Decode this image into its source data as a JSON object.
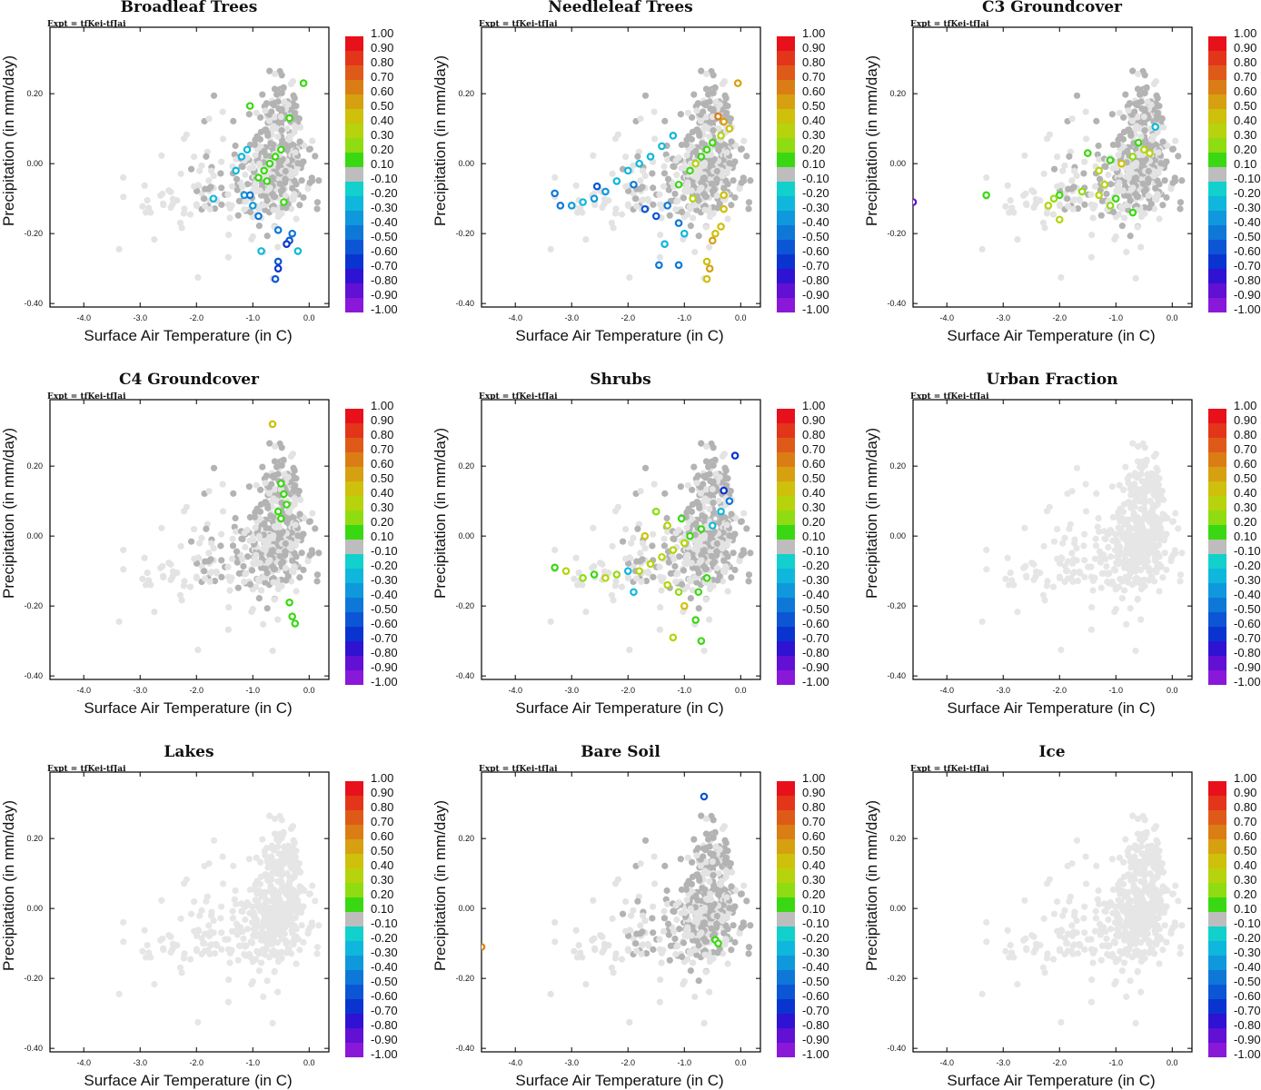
{
  "expt_label": "Expt = tfKei-tfJai",
  "x_label": "Surface Air Temperature (in C)",
  "y_label": "Precipitation (in mm/day)",
  "x_ticks": [
    "-4.0",
    "-3.0",
    "-2.0",
    "-1.0",
    "0.0"
  ],
  "y_ticks": [
    "0.20",
    "0.00",
    "-0.20",
    "-0.40"
  ],
  "colorbar_labels": [
    "1.00",
    "0.90",
    "0.80",
    "0.70",
    "0.60",
    "0.50",
    "0.40",
    "0.30",
    "0.20",
    "0.10",
    "-0.10",
    "-0.20",
    "-0.30",
    "-0.40",
    "-0.50",
    "-0.60",
    "-0.70",
    "-0.80",
    "-0.90",
    "-1.00"
  ],
  "colorbar_colors": [
    "#e8101a",
    "#e3351a",
    "#df5a18",
    "#db7d15",
    "#d7a010",
    "#cfc00c",
    "#b6d30c",
    "#8fdc12",
    "#3ad812",
    "#bdbdbd",
    "#12d0cc",
    "#10b7dc",
    "#0f98dc",
    "#0e78d8",
    "#0c56d6",
    "#0a34d0",
    "#2f12d2",
    "#6110d4",
    "#8a18d8"
  ],
  "chart_data": [
    {
      "type": "scatter",
      "title": "Broadleaf Trees",
      "xlim": [
        -4.6,
        0.35
      ],
      "ylim": [
        -0.41,
        0.39
      ],
      "colored_points": [
        {
          "x": -1.05,
          "y": 0.165,
          "v": 0.15
        },
        {
          "x": -0.1,
          "y": 0.23,
          "v": 0.15
        },
        {
          "x": -0.35,
          "y": 0.13,
          "v": 0.15
        },
        {
          "x": -0.5,
          "y": 0.04,
          "v": 0.15
        },
        {
          "x": -0.6,
          "y": 0.02,
          "v": 0.15
        },
        {
          "x": -0.7,
          "y": 0.0,
          "v": 0.15
        },
        {
          "x": -0.8,
          "y": -0.02,
          "v": 0.15
        },
        {
          "x": -0.9,
          "y": -0.04,
          "v": 0.15
        },
        {
          "x": -0.75,
          "y": -0.05,
          "v": 0.15
        },
        {
          "x": -0.45,
          "y": -0.11,
          "v": 0.15
        },
        {
          "x": -1.1,
          "y": 0.04,
          "v": -0.2
        },
        {
          "x": -1.2,
          "y": 0.02,
          "v": -0.2
        },
        {
          "x": -1.3,
          "y": -0.02,
          "v": -0.3
        },
        {
          "x": -1.7,
          "y": -0.1,
          "v": -0.2
        },
        {
          "x": -1.15,
          "y": -0.09,
          "v": -0.35
        },
        {
          "x": -1.0,
          "y": -0.12,
          "v": -0.35
        },
        {
          "x": -0.9,
          "y": -0.15,
          "v": -0.4
        },
        {
          "x": -0.55,
          "y": -0.19,
          "v": -0.45
        },
        {
          "x": -0.3,
          "y": -0.2,
          "v": -0.45
        },
        {
          "x": -0.35,
          "y": -0.22,
          "v": -0.55
        },
        {
          "x": -0.4,
          "y": -0.23,
          "v": -0.65
        },
        {
          "x": -0.2,
          "y": -0.25,
          "v": -0.25
        },
        {
          "x": -0.55,
          "y": -0.28,
          "v": -0.55
        },
        {
          "x": -0.55,
          "y": -0.3,
          "v": -0.65
        },
        {
          "x": -0.6,
          "y": -0.33,
          "v": -0.55
        },
        {
          "x": -0.85,
          "y": -0.25,
          "v": -0.3
        },
        {
          "x": -1.05,
          "y": -0.09,
          "v": -0.4
        }
      ]
    },
    {
      "type": "scatter",
      "title": "Needleleaf Trees",
      "xlim": [
        -4.6,
        0.35
      ],
      "ylim": [
        -0.41,
        0.39
      ],
      "colored_points": [
        {
          "x": -0.05,
          "y": 0.23,
          "v": 0.6
        },
        {
          "x": -0.4,
          "y": 0.135,
          "v": 0.7
        },
        {
          "x": -0.3,
          "y": 0.12,
          "v": 0.55
        },
        {
          "x": -0.2,
          "y": 0.1,
          "v": 0.45
        },
        {
          "x": -0.35,
          "y": 0.08,
          "v": 0.35
        },
        {
          "x": -0.5,
          "y": 0.06,
          "v": 0.2
        },
        {
          "x": -0.6,
          "y": 0.04,
          "v": 0.15
        },
        {
          "x": -0.7,
          "y": 0.02,
          "v": 0.15
        },
        {
          "x": -0.8,
          "y": 0.0,
          "v": 0.3
        },
        {
          "x": -0.9,
          "y": -0.02,
          "v": 0.2
        },
        {
          "x": -1.1,
          "y": -0.06,
          "v": 0.15
        },
        {
          "x": -0.85,
          "y": -0.1,
          "v": 0.3
        },
        {
          "x": -0.3,
          "y": -0.13,
          "v": 0.5
        },
        {
          "x": -0.35,
          "y": -0.18,
          "v": 0.45
        },
        {
          "x": -0.45,
          "y": -0.2,
          "v": 0.5
        },
        {
          "x": -0.5,
          "y": -0.22,
          "v": 0.55
        },
        {
          "x": -0.6,
          "y": -0.28,
          "v": 0.5
        },
        {
          "x": -0.55,
          "y": -0.3,
          "v": 0.6
        },
        {
          "x": -0.6,
          "y": -0.33,
          "v": 0.45
        },
        {
          "x": -0.3,
          "y": -0.09,
          "v": 0.4
        },
        {
          "x": -1.2,
          "y": 0.08,
          "v": -0.2
        },
        {
          "x": -1.4,
          "y": 0.05,
          "v": -0.25
        },
        {
          "x": -1.6,
          "y": 0.02,
          "v": -0.2
        },
        {
          "x": -1.8,
          "y": 0.0,
          "v": -0.25
        },
        {
          "x": -2.0,
          "y": -0.02,
          "v": -0.2
        },
        {
          "x": -2.2,
          "y": -0.05,
          "v": -0.3
        },
        {
          "x": -2.4,
          "y": -0.08,
          "v": -0.35
        },
        {
          "x": -2.6,
          "y": -0.1,
          "v": -0.35
        },
        {
          "x": -2.8,
          "y": -0.11,
          "v": -0.3
        },
        {
          "x": -3.0,
          "y": -0.12,
          "v": -0.35
        },
        {
          "x": -3.2,
          "y": -0.12,
          "v": -0.4
        },
        {
          "x": -3.3,
          "y": -0.085,
          "v": -0.45
        },
        {
          "x": -2.55,
          "y": -0.065,
          "v": -0.5
        },
        {
          "x": -1.9,
          "y": -0.06,
          "v": -0.45
        },
        {
          "x": -1.7,
          "y": -0.13,
          "v": -0.5
        },
        {
          "x": -1.5,
          "y": -0.15,
          "v": -0.55
        },
        {
          "x": -1.3,
          "y": -0.12,
          "v": -0.45
        },
        {
          "x": -1.1,
          "y": -0.17,
          "v": -0.4
        },
        {
          "x": -1.0,
          "y": -0.2,
          "v": -0.3
        },
        {
          "x": -1.35,
          "y": -0.23,
          "v": -0.2
        },
        {
          "x": -1.1,
          "y": -0.29,
          "v": -0.4
        },
        {
          "x": -1.45,
          "y": -0.29,
          "v": -0.45
        }
      ]
    },
    {
      "type": "scatter",
      "title": "C3 Groundcover",
      "xlim": [
        -4.6,
        0.35
      ],
      "ylim": [
        -0.41,
        0.39
      ],
      "colored_points": [
        {
          "x": -0.3,
          "y": 0.105,
          "v": -0.2
        },
        {
          "x": -0.6,
          "y": 0.06,
          "v": 0.15
        },
        {
          "x": -0.5,
          "y": 0.04,
          "v": 0.3
        },
        {
          "x": -0.4,
          "y": 0.03,
          "v": 0.35
        },
        {
          "x": -0.7,
          "y": 0.02,
          "v": 0.25
        },
        {
          "x": -0.9,
          "y": 0.0,
          "v": 0.4
        },
        {
          "x": -1.1,
          "y": 0.01,
          "v": 0.2
        },
        {
          "x": -1.3,
          "y": -0.02,
          "v": 0.3
        },
        {
          "x": -1.5,
          "y": 0.03,
          "v": 0.15
        },
        {
          "x": -1.2,
          "y": -0.06,
          "v": 0.35
        },
        {
          "x": -1.0,
          "y": -0.1,
          "v": 0.2
        },
        {
          "x": -1.1,
          "y": -0.12,
          "v": 0.25
        },
        {
          "x": -1.3,
          "y": -0.09,
          "v": 0.3
        },
        {
          "x": -1.6,
          "y": -0.08,
          "v": 0.25
        },
        {
          "x": -2.0,
          "y": -0.09,
          "v": 0.2
        },
        {
          "x": -2.1,
          "y": -0.1,
          "v": 0.25
        },
        {
          "x": -2.2,
          "y": -0.12,
          "v": 0.3
        },
        {
          "x": -2.0,
          "y": -0.16,
          "v": 0.35
        },
        {
          "x": -3.3,
          "y": -0.09,
          "v": 0.2
        },
        {
          "x": -0.7,
          "y": -0.14,
          "v": 0.15
        },
        {
          "x": -4.6,
          "y": -0.11,
          "v": -0.8
        }
      ]
    },
    {
      "type": "scatter",
      "title": "C4 Groundcover",
      "xlim": [
        -4.6,
        0.35
      ],
      "ylim": [
        -0.41,
        0.39
      ],
      "colored_points": [
        {
          "x": -0.65,
          "y": 0.32,
          "v": 0.45
        },
        {
          "x": -0.5,
          "y": 0.15,
          "v": 0.15
        },
        {
          "x": -0.45,
          "y": 0.12,
          "v": 0.15
        },
        {
          "x": -0.4,
          "y": 0.09,
          "v": 0.15
        },
        {
          "x": -0.55,
          "y": 0.07,
          "v": 0.15
        },
        {
          "x": -0.5,
          "y": 0.05,
          "v": 0.15
        },
        {
          "x": -0.35,
          "y": -0.19,
          "v": 0.15
        },
        {
          "x": -0.3,
          "y": -0.23,
          "v": 0.15
        },
        {
          "x": -0.25,
          "y": -0.25,
          "v": 0.15
        }
      ]
    },
    {
      "type": "scatter",
      "title": "Shrubs",
      "xlim": [
        -4.6,
        0.35
      ],
      "ylim": [
        -0.41,
        0.39
      ],
      "colored_points": [
        {
          "x": -0.1,
          "y": 0.23,
          "v": -0.7
        },
        {
          "x": -0.3,
          "y": 0.13,
          "v": -0.65
        },
        {
          "x": -0.2,
          "y": 0.1,
          "v": -0.45
        },
        {
          "x": -0.35,
          "y": 0.07,
          "v": -0.3
        },
        {
          "x": -0.5,
          "y": 0.03,
          "v": -0.2
        },
        {
          "x": -0.7,
          "y": 0.02,
          "v": 0.15
        },
        {
          "x": -0.9,
          "y": 0.0,
          "v": 0.2
        },
        {
          "x": -1.0,
          "y": -0.02,
          "v": 0.3
        },
        {
          "x": -1.2,
          "y": -0.04,
          "v": 0.35
        },
        {
          "x": -1.4,
          "y": -0.06,
          "v": 0.3
        },
        {
          "x": -1.6,
          "y": -0.08,
          "v": 0.35
        },
        {
          "x": -1.8,
          "y": -0.1,
          "v": 0.3
        },
        {
          "x": -2.0,
          "y": -0.1,
          "v": -0.2
        },
        {
          "x": -2.2,
          "y": -0.11,
          "v": 0.25
        },
        {
          "x": -2.4,
          "y": -0.12,
          "v": 0.3
        },
        {
          "x": -2.6,
          "y": -0.11,
          "v": 0.2
        },
        {
          "x": -2.8,
          "y": -0.12,
          "v": 0.25
        },
        {
          "x": -3.1,
          "y": -0.1,
          "v": 0.3
        },
        {
          "x": -3.3,
          "y": -0.09,
          "v": 0.2
        },
        {
          "x": -1.3,
          "y": -0.14,
          "v": 0.35
        },
        {
          "x": -1.1,
          "y": -0.16,
          "v": 0.25
        },
        {
          "x": -1.0,
          "y": -0.2,
          "v": 0.45
        },
        {
          "x": -0.8,
          "y": -0.24,
          "v": 0.2
        },
        {
          "x": -1.2,
          "y": -0.29,
          "v": 0.3
        },
        {
          "x": -0.7,
          "y": -0.3,
          "v": 0.15
        },
        {
          "x": -1.9,
          "y": -0.16,
          "v": -0.3
        },
        {
          "x": -1.5,
          "y": 0.07,
          "v": 0.25
        },
        {
          "x": -1.7,
          "y": 0.0,
          "v": 0.4
        },
        {
          "x": -1.3,
          "y": 0.03,
          "v": 0.3
        },
        {
          "x": -0.6,
          "y": -0.12,
          "v": 0.2
        },
        {
          "x": -1.05,
          "y": 0.05,
          "v": 0.2
        },
        {
          "x": -0.75,
          "y": -0.16,
          "v": 0.2
        },
        {
          "x": -0.45,
          "y": 0.05,
          "v": 0.1
        }
      ]
    },
    {
      "type": "scatter",
      "title": "Urban Fraction",
      "xlim": [
        -4.6,
        0.35
      ],
      "ylim": [
        -0.41,
        0.39
      ],
      "colored_points": []
    },
    {
      "type": "scatter",
      "title": "Lakes",
      "xlim": [
        -4.6,
        0.35
      ],
      "ylim": [
        -0.41,
        0.39
      ],
      "colored_points": []
    },
    {
      "type": "scatter",
      "title": "Bare Soil",
      "xlim": [
        -4.6,
        0.35
      ],
      "ylim": [
        -0.41,
        0.39
      ],
      "colored_points": [
        {
          "x": -0.65,
          "y": 0.32,
          "v": -0.55
        },
        {
          "x": -0.45,
          "y": -0.09,
          "v": 0.15
        },
        {
          "x": -0.4,
          "y": -0.1,
          "v": 0.15
        },
        {
          "x": -4.6,
          "y": -0.11,
          "v": 0.7
        }
      ]
    },
    {
      "type": "scatter",
      "title": "Ice",
      "xlim": [
        -4.6,
        0.35
      ],
      "ylim": [
        -0.41,
        0.39
      ],
      "colored_points": []
    }
  ]
}
